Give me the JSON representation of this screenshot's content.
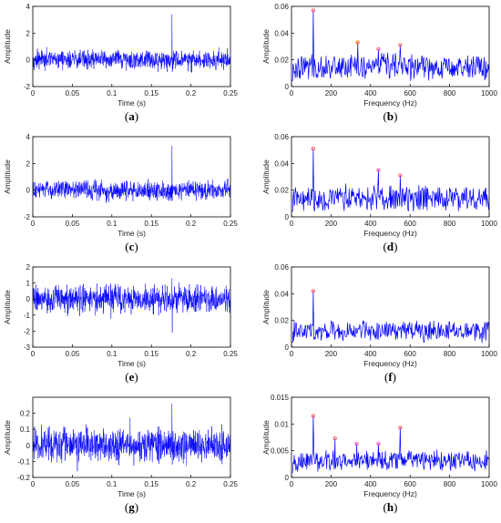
{
  "chart_data": [
    {
      "id": "a",
      "type": "line",
      "panel_label": "a",
      "xlabel": "Time (s)",
      "ylabel": "Amplitude",
      "xlim": [
        0,
        0.25
      ],
      "ylim": [
        -2,
        4
      ],
      "xticks": [
        "0",
        "0.05",
        "0.1",
        "0.15",
        "0.2",
        "0.25"
      ],
      "yticks": [
        "-2",
        "0",
        "2",
        "4"
      ],
      "color": "#0000ff",
      "signal": {
        "noise_amplitude": 0.65,
        "spike": {
          "x": 0.176,
          "y": 3.4,
          "min": -0.9
        }
      }
    },
    {
      "id": "b",
      "type": "line",
      "panel_label": "b",
      "xlabel": "Frequency (Hz)",
      "ylabel": "Amplitude",
      "xlim": [
        0,
        1000
      ],
      "ylim": [
        0,
        0.06
      ],
      "xticks": [
        "0",
        "200",
        "400",
        "600",
        "800",
        "1000"
      ],
      "yticks": [
        "0",
        "0.02",
        "0.04",
        "0.06"
      ],
      "color": "#0000ff",
      "marker_color": "#ff4d4d",
      "spectrum": {
        "baseline": 0.015,
        "spread": 0.011
      },
      "peaks": [
        {
          "x": 110,
          "y": 0.057
        },
        {
          "x": 335,
          "y": 0.033
        },
        {
          "x": 440,
          "y": 0.028
        },
        {
          "x": 550,
          "y": 0.031
        }
      ]
    },
    {
      "id": "c",
      "type": "line",
      "panel_label": "c",
      "xlabel": "Time (s)",
      "ylabel": "Amplitude",
      "xlim": [
        0,
        0.25
      ],
      "ylim": [
        -2,
        4
      ],
      "xticks": [
        "0",
        "0.05",
        "0.1",
        "0.15",
        "0.2",
        "0.25"
      ],
      "yticks": [
        "-2",
        "0",
        "2",
        "4"
      ],
      "color": "#0000ff",
      "signal": {
        "noise_amplitude": 0.65,
        "spike": {
          "x": 0.176,
          "y": 3.3,
          "min": -0.8
        }
      }
    },
    {
      "id": "d",
      "type": "line",
      "panel_label": "d",
      "xlabel": "Frequency (Hz)",
      "ylabel": "Amplitude",
      "xlim": [
        0,
        1000
      ],
      "ylim": [
        0,
        0.06
      ],
      "xticks": [
        "0",
        "200",
        "400",
        "600",
        "800",
        "1000"
      ],
      "yticks": [
        "0",
        "0.02",
        "0.04",
        "0.06"
      ],
      "color": "#0000ff",
      "marker_color": "#ff4d4d",
      "spectrum": {
        "baseline": 0.014,
        "spread": 0.011
      },
      "peaks": [
        {
          "x": 110,
          "y": 0.051
        },
        {
          "x": 440,
          "y": 0.035
        },
        {
          "x": 550,
          "y": 0.031
        }
      ]
    },
    {
      "id": "e",
      "type": "line",
      "panel_label": "e",
      "xlabel": "Time (s)",
      "ylabel": "Amplitude",
      "xlim": [
        0,
        0.25
      ],
      "ylim": [
        -3,
        2
      ],
      "xticks": [
        "0",
        "0.05",
        "0.1",
        "0.15",
        "0.2",
        "0.25"
      ],
      "yticks": [
        "-3",
        "-2",
        "-1",
        "0",
        "1",
        "2"
      ],
      "color": "#0000ff",
      "signal": {
        "noise_amplitude": 0.75,
        "spike": {
          "x": 0.176,
          "y": 1.3,
          "min": -2.1
        }
      }
    },
    {
      "id": "f",
      "type": "line",
      "panel_label": "f",
      "xlabel": "Frequency (Hz)",
      "ylabel": "Amplitude",
      "xlim": [
        0,
        1000
      ],
      "ylim": [
        0,
        0.06
      ],
      "xticks": [
        "0",
        "200",
        "400",
        "600",
        "800",
        "1000"
      ],
      "yticks": [
        "0",
        "0.02",
        "0.04",
        "0.06"
      ],
      "color": "#0000ff",
      "marker_color": "#ff4d4d",
      "spectrum": {
        "baseline": 0.012,
        "spread": 0.009
      },
      "peaks": [
        {
          "x": 110,
          "y": 0.042
        }
      ]
    },
    {
      "id": "g",
      "type": "line",
      "panel_label": "g",
      "xlabel": "Time (s)",
      "ylabel": "Amplitude",
      "xlim": [
        0,
        0.25
      ],
      "ylim": [
        -0.2,
        0.3
      ],
      "xticks": [
        "0",
        "0.05",
        "0.1",
        "0.15",
        "0.2",
        "0.25"
      ],
      "yticks": [
        "-0.2",
        "-0.1",
        "0",
        "0.1",
        "0.2"
      ],
      "color": "#0000ff",
      "signal": {
        "noise_amplitude": 0.095,
        "spike": {
          "x": 0.176,
          "y": 0.26,
          "min": -0.12
        }
      }
    },
    {
      "id": "h",
      "type": "line",
      "panel_label": "h",
      "xlabel": "Frequency (Hz)",
      "ylabel": "Amplitude",
      "xlim": [
        0,
        1000
      ],
      "ylim": [
        0,
        0.015
      ],
      "xticks": [
        "0",
        "200",
        "400",
        "600",
        "800",
        "1000"
      ],
      "yticks": [
        "0",
        "0.005",
        "0.01",
        "0.015"
      ],
      "color": "#0000ff",
      "marker_color": "#ff4d4d",
      "spectrum": {
        "baseline": 0.0032,
        "spread": 0.0022
      },
      "peaks": [
        {
          "x": 110,
          "y": 0.0115
        },
        {
          "x": 220,
          "y": 0.0073
        },
        {
          "x": 330,
          "y": 0.0063
        },
        {
          "x": 440,
          "y": 0.0063
        },
        {
          "x": 550,
          "y": 0.0093
        }
      ]
    }
  ]
}
